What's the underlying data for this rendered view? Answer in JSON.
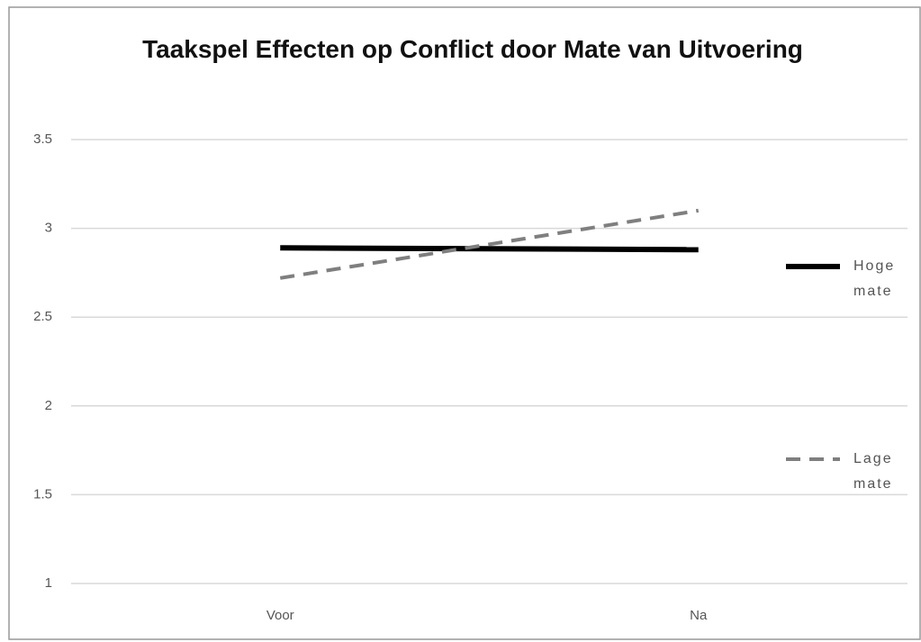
{
  "chart_data": {
    "type": "line",
    "title": "Taakspel Effecten op Conflict door Mate van Uitvoering",
    "categories": [
      "Voor",
      "Na"
    ],
    "series": [
      {
        "name": "Hoge mate",
        "color": "#000000",
        "values": [
          2.89,
          2.88
        ]
      },
      {
        "name": "Lage mate",
        "color": "#7f7f7f",
        "values": [
          2.72,
          3.1
        ]
      }
    ],
    "ylim": [
      1,
      3.5
    ],
    "yticks": [
      1,
      1.5,
      2,
      2.5,
      3,
      3.5
    ],
    "grid": true,
    "legend": "right"
  }
}
